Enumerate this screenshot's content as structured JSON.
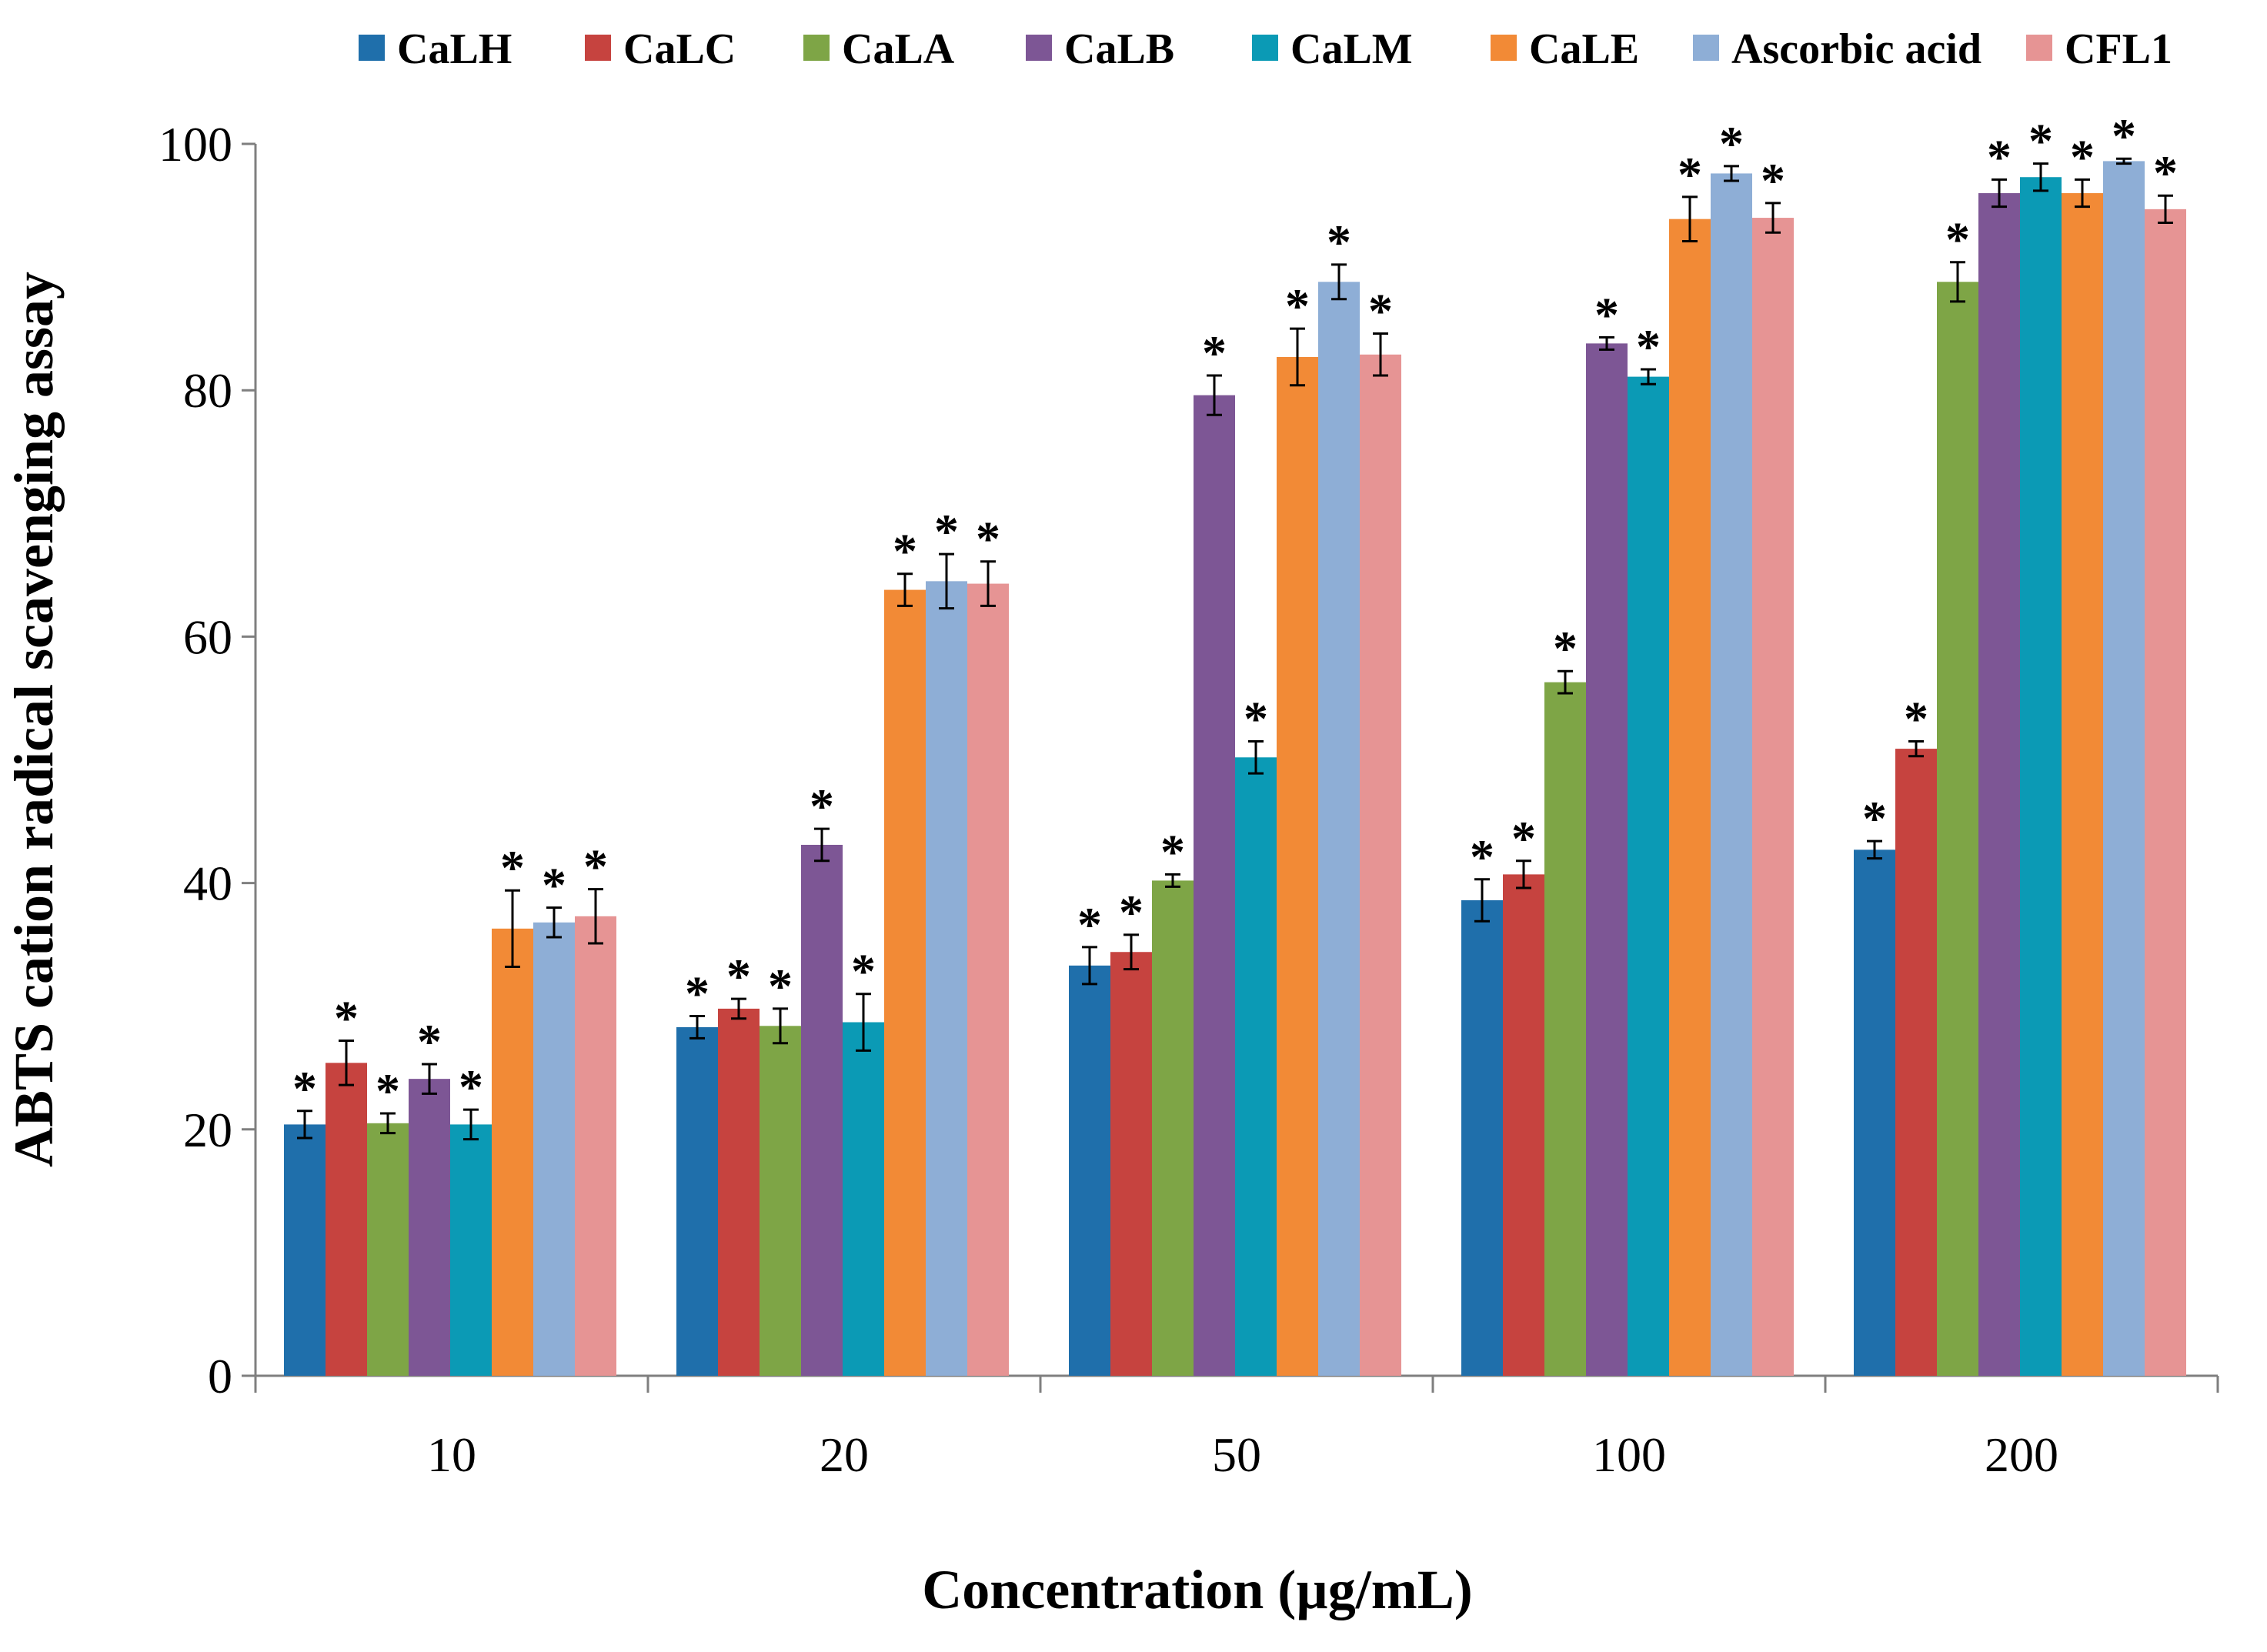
{
  "chart_data": {
    "type": "bar",
    "title": "",
    "xlabel": "Concentration (µg/mL)",
    "ylabel": "ABTS cation radical scavenging assay",
    "ylim": [
      0,
      100
    ],
    "yticks": [
      "0",
      "20",
      "40",
      "60",
      "80",
      "100"
    ],
    "grid": false,
    "legend_position": "top",
    "categories": [
      "10",
      "20",
      "50",
      "100",
      "200"
    ],
    "significance_marker": "*",
    "series": [
      {
        "name": "CaLH",
        "color": "#1F6FAB",
        "values": [
          20.4,
          28.3,
          33.3,
          38.6,
          42.7
        ],
        "errors": [
          1.1,
          0.9,
          1.5,
          1.7,
          0.7
        ],
        "significant": [
          true,
          true,
          true,
          true,
          true
        ]
      },
      {
        "name": "CaLC",
        "color": "#C6433F",
        "values": [
          25.4,
          29.8,
          34.4,
          40.7,
          50.9
        ],
        "errors": [
          1.8,
          0.8,
          1.4,
          1.1,
          0.6
        ],
        "significant": [
          true,
          true,
          true,
          true,
          true
        ]
      },
      {
        "name": "CaLA",
        "color": "#7EA546",
        "values": [
          20.5,
          28.4,
          40.2,
          56.3,
          88.8
        ],
        "errors": [
          0.8,
          1.4,
          0.5,
          0.9,
          1.6
        ],
        "significant": [
          true,
          true,
          true,
          true,
          true
        ]
      },
      {
        "name": "CaLB",
        "color": "#7D5695",
        "values": [
          24.1,
          43.1,
          79.6,
          83.8,
          96.0
        ],
        "errors": [
          1.2,
          1.3,
          1.6,
          0.5,
          1.1
        ],
        "significant": [
          true,
          true,
          true,
          true,
          true
        ]
      },
      {
        "name": "CaLM",
        "color": "#0B9AB5",
        "values": [
          20.4,
          28.7,
          50.2,
          81.1,
          97.3
        ],
        "errors": [
          1.2,
          2.3,
          1.3,
          0.6,
          1.1
        ],
        "significant": [
          true,
          true,
          true,
          true,
          true
        ]
      },
      {
        "name": "CaLE",
        "color": "#F28A36",
        "values": [
          36.3,
          63.8,
          82.7,
          93.9,
          96.0
        ],
        "errors": [
          3.1,
          1.3,
          2.3,
          1.8,
          1.1
        ],
        "significant": [
          true,
          true,
          true,
          true,
          true
        ]
      },
      {
        "name": "Ascorbic acid",
        "color": "#8EAED6",
        "values": [
          36.8,
          64.5,
          88.8,
          97.6,
          98.6
        ],
        "errors": [
          1.2,
          2.2,
          1.4,
          0.6,
          0.2
        ],
        "significant": [
          true,
          true,
          true,
          true,
          true
        ]
      },
      {
        "name": "CFL1",
        "color": "#E69494",
        "values": [
          37.3,
          64.3,
          82.9,
          94.0,
          94.7
        ],
        "errors": [
          2.2,
          1.8,
          1.7,
          1.2,
          1.1
        ],
        "significant": [
          true,
          true,
          true,
          true,
          true
        ]
      }
    ]
  }
}
